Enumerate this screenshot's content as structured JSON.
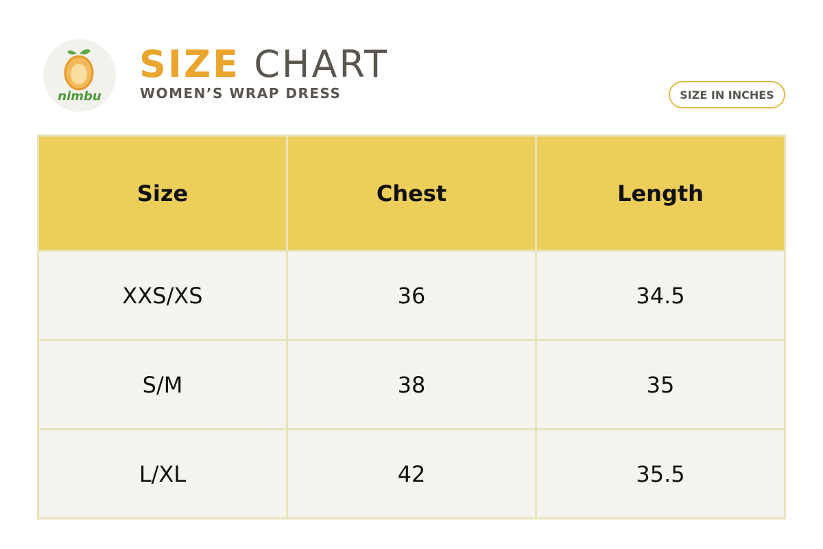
{
  "header": {
    "logo_text": "nimbu",
    "title_accent": "SIZE",
    "title_rest": "CHART",
    "subtitle": "WOMEN’S WRAP DRESS",
    "badge": "SIZE IN INCHES"
  },
  "table": {
    "columns": [
      "Size",
      "Chest",
      "Length"
    ],
    "rows": [
      [
        "XXS/XS",
        "36",
        "34.5"
      ],
      [
        "S/M",
        "38",
        "35"
      ],
      [
        "L/XL",
        "42",
        "35.5"
      ]
    ]
  }
}
